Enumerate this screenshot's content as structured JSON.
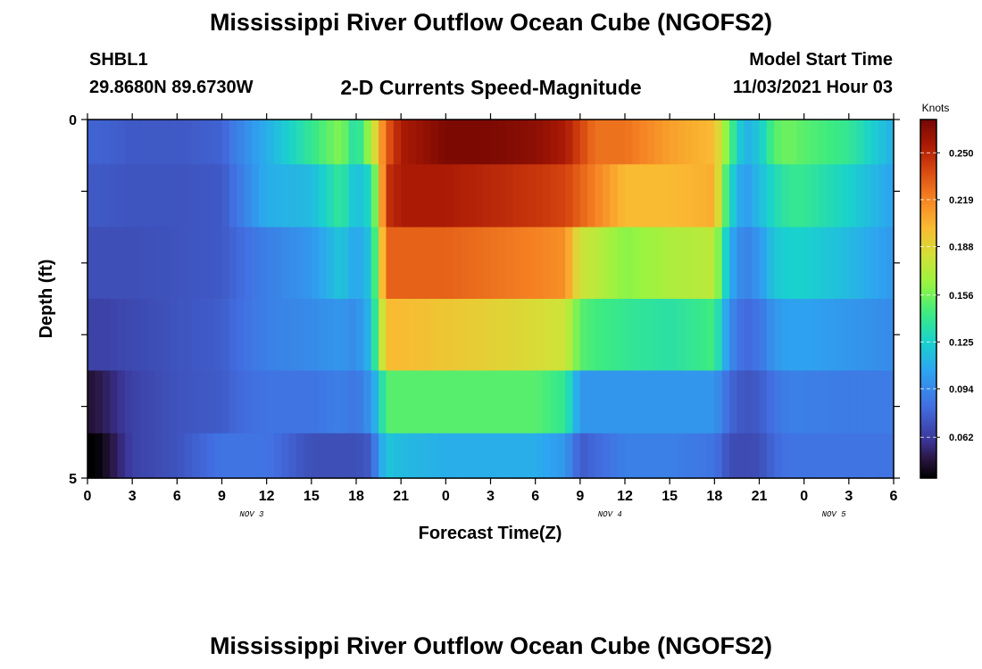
{
  "header": {
    "title": "Mississippi River Outflow Ocean Cube (NGOFS2)",
    "station_id": "SHBL1",
    "coordinates": "29.8680N  89.6730W",
    "subtitle": "2-D Currents Speed-Magnitude",
    "model_start_label": "Model Start Time",
    "model_start_value": "11/03/2021 Hour 03"
  },
  "footer": {
    "title": "Mississippi River Outflow Ocean Cube (NGOFS2)"
  },
  "chart_data": {
    "type": "heatmap",
    "xlabel": "Forecast Time(Z)",
    "ylabel": "Depth (ft)",
    "x_ticks": [
      "0",
      "3",
      "6",
      "9",
      "12",
      "15",
      "18",
      "21",
      "0",
      "3",
      "6",
      "9",
      "12",
      "15",
      "18",
      "21",
      "0",
      "3",
      "6"
    ],
    "x_tick_hours": [
      0,
      3,
      6,
      9,
      12,
      15,
      18,
      21,
      24,
      27,
      30,
      33,
      36,
      39,
      42,
      45,
      48,
      51,
      54
    ],
    "day_labels": [
      {
        "label": "NOV 3",
        "hour": 11
      },
      {
        "label": "NOV 4",
        "hour": 35
      },
      {
        "label": "NOV 5",
        "hour": 50
      }
    ],
    "y_ticks": [
      "0",
      "5"
    ],
    "xlim": [
      0,
      54
    ],
    "ylim": [
      0,
      5
    ],
    "colorbar": {
      "unit": "Knots",
      "ticks": [
        0.062,
        0.094,
        0.125,
        0.156,
        0.188,
        0.219,
        0.25
      ],
      "tick_labels": [
        "0.062",
        "0.094",
        "0.125",
        "0.156",
        "0.188",
        "0.219",
        "0.250"
      ],
      "min": 0.035,
      "max": 0.272
    },
    "depth_layers": [
      0.25,
      1.0,
      2.0,
      3.0,
      4.0,
      4.75
    ],
    "control_hours": [
      0,
      1,
      3,
      6,
      9,
      10,
      12,
      15,
      17,
      18,
      19,
      19.5,
      20,
      21,
      24,
      27,
      30,
      32,
      33,
      34,
      36,
      39,
      42,
      43,
      44,
      45,
      46,
      47,
      48,
      51,
      54
    ],
    "speeds": [
      [
        0.078,
        0.078,
        0.074,
        0.074,
        0.078,
        0.09,
        0.11,
        0.14,
        0.16,
        0.13,
        0.17,
        0.2,
        0.23,
        0.255,
        0.27,
        0.27,
        0.265,
        0.255,
        0.24,
        0.225,
        0.225,
        0.21,
        0.2,
        0.15,
        0.11,
        0.12,
        0.15,
        0.155,
        0.15,
        0.14,
        0.11
      ],
      [
        0.074,
        0.074,
        0.072,
        0.072,
        0.074,
        0.085,
        0.11,
        0.115,
        0.14,
        0.115,
        0.13,
        0.18,
        0.245,
        0.255,
        0.255,
        0.25,
        0.245,
        0.24,
        0.23,
        0.22,
        0.2,
        0.2,
        0.205,
        0.13,
        0.1,
        0.115,
        0.13,
        0.14,
        0.14,
        0.125,
        0.105
      ],
      [
        0.07,
        0.07,
        0.07,
        0.072,
        0.074,
        0.08,
        0.09,
        0.1,
        0.12,
        0.105,
        0.12,
        0.17,
        0.23,
        0.23,
        0.23,
        0.225,
        0.22,
        0.215,
        0.18,
        0.175,
        0.16,
        0.17,
        0.175,
        0.11,
        0.09,
        0.1,
        0.12,
        0.125,
        0.125,
        0.115,
        0.1
      ],
      [
        0.065,
        0.065,
        0.068,
        0.072,
        0.076,
        0.082,
        0.09,
        0.095,
        0.1,
        0.095,
        0.115,
        0.16,
        0.2,
        0.2,
        0.195,
        0.19,
        0.185,
        0.18,
        0.15,
        0.145,
        0.14,
        0.135,
        0.145,
        0.095,
        0.08,
        0.085,
        0.1,
        0.105,
        0.105,
        0.1,
        0.095
      ],
      [
        0.045,
        0.05,
        0.065,
        0.072,
        0.075,
        0.08,
        0.085,
        0.085,
        0.09,
        0.085,
        0.1,
        0.12,
        0.15,
        0.15,
        0.15,
        0.15,
        0.15,
        0.14,
        0.1,
        0.1,
        0.1,
        0.1,
        0.1,
        0.08,
        0.072,
        0.075,
        0.085,
        0.09,
        0.09,
        0.088,
        0.088
      ],
      [
        0.03,
        0.04,
        0.065,
        0.072,
        0.085,
        0.085,
        0.085,
        0.07,
        0.07,
        0.07,
        0.075,
        0.1,
        0.12,
        0.115,
        0.11,
        0.11,
        0.11,
        0.1,
        0.075,
        0.08,
        0.09,
        0.09,
        0.085,
        0.07,
        0.068,
        0.07,
        0.08,
        0.085,
        0.085,
        0.085,
        0.085
      ]
    ]
  }
}
